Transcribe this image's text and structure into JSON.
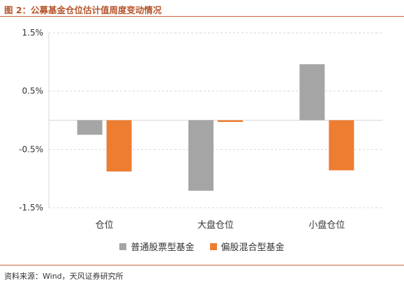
{
  "figure": {
    "title": "图 2：公募基金仓位估计值周度变动情况",
    "source": "资料来源：Wind，天风证券研究所"
  },
  "chart_data": {
    "type": "bar",
    "categories": [
      "仓位",
      "大盘仓位",
      "小盘仓位"
    ],
    "series": [
      {
        "name": "普通股票型基金",
        "values": [
          -0.25,
          -1.21,
          0.96
        ],
        "color": "#a5a5a5"
      },
      {
        "name": "偏股混合型基金",
        "values": [
          -0.88,
          -0.03,
          -0.86
        ],
        "color": "#ed7d31"
      }
    ],
    "ylim": [
      -1.5,
      1.5
    ],
    "yticks": [
      1.5,
      0.5,
      -0.5,
      -1.5
    ],
    "ytick_labels": [
      "1.5%",
      "0.5%",
      "-0.5%",
      "-1.5%"
    ],
    "grid": "horizontal-dashed",
    "legend": "bottom-center"
  }
}
